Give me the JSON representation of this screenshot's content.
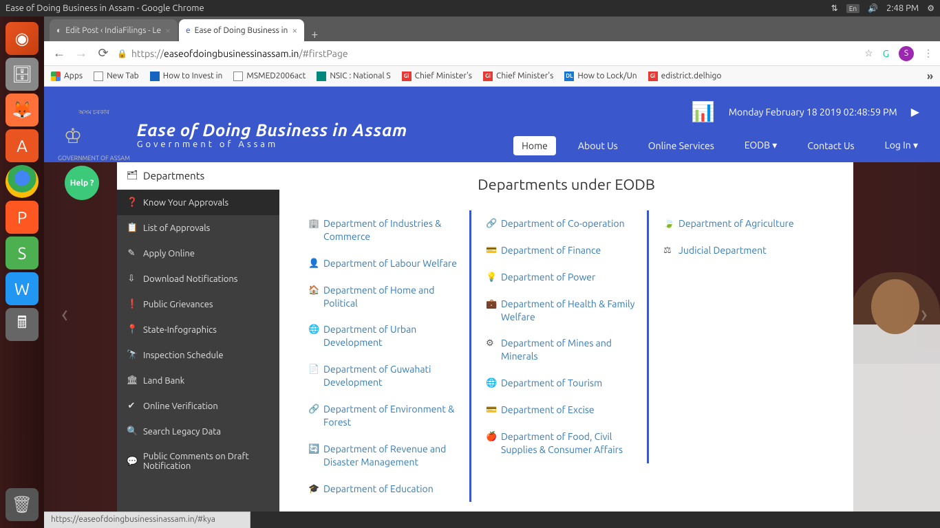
{
  "topbar": {
    "window_title": "Ease of Doing Business in Assam - Google Chrome",
    "lang": "En",
    "time": "2:48 PM"
  },
  "launcher": {
    "items": [
      "ubuntu",
      "files",
      "firefox",
      "shop",
      "chrome",
      "wps1",
      "wps2",
      "wps3",
      "calc"
    ]
  },
  "tabs": {
    "t0": {
      "title": "Edit Post ‹ IndiaFilings - Le"
    },
    "t1": {
      "title": "Ease of Doing Business in"
    }
  },
  "address": {
    "scheme": "https://",
    "host": "easeofdoingbusinessinassam.in",
    "path": "/#firstPage",
    "avatar": "S"
  },
  "bookmarks": {
    "b0": "Apps",
    "b1": "New Tab",
    "b2": "How to Invest in",
    "b3": "MSMED2006act",
    "b4": "NSIC : National S",
    "b5": "Chief Minister's",
    "b6": "Chief Minister's",
    "b7": "How to Lock/Un",
    "b8": "edistrict.delhigo"
  },
  "header": {
    "emblem_top": "অসম চৰকাৰ",
    "emblem_bottom": "GOVERNMENT OF ASSAM",
    "title": "Ease of Doing Business in Assam",
    "subtitle": "Government of Assam",
    "datetime": "Monday February 18 2019 02:48:59 PM",
    "nav": {
      "home": "Home",
      "about": "About Us",
      "online": "Online Services",
      "eodb": "EODB",
      "contact": "Contact Us",
      "login": "Log In"
    }
  },
  "help": "Help ?",
  "sidebar": {
    "header": "Departments",
    "s0": "Know Your Approvals",
    "s1": "List of Approvals",
    "s2": "Apply Online",
    "s3": "Download Notifications",
    "s4": "Public Grievances",
    "s5": "State-Infographics",
    "s6": "Inspection Schedule",
    "s7": "Land Bank",
    "s8": "Online Verification",
    "s9": "Search Legacy Data",
    "s10": "Public Comments on Draft Notification"
  },
  "main": {
    "title": "Departments under EODB",
    "c1": {
      "d0": "Department of Industries & Commerce",
      "d1": "Department of Labour Welfare",
      "d2": "Department of Home and Political",
      "d3": "Department of Urban Development",
      "d4": "Department of Guwahati Development",
      "d5": "Department of Environment & Forest",
      "d6": "Department of Revenue and Disaster Management",
      "d7": "Department of Education"
    },
    "c2": {
      "d0": "Department of Co-operation",
      "d1": "Department of Finance",
      "d2": "Department of Power",
      "d3": "Department of Health & Family Welfare",
      "d4": "Department of Mines and Minerals",
      "d5": "Department of Tourism",
      "d6": "Department of Excise",
      "d7": "Department of Food, Civil Supplies & Consumer Affairs"
    },
    "c3": {
      "d0": "Department of Agriculture",
      "d1": "Judicial Department"
    }
  },
  "status": "https://easeofdoingbusinessinassam.in/#kya"
}
